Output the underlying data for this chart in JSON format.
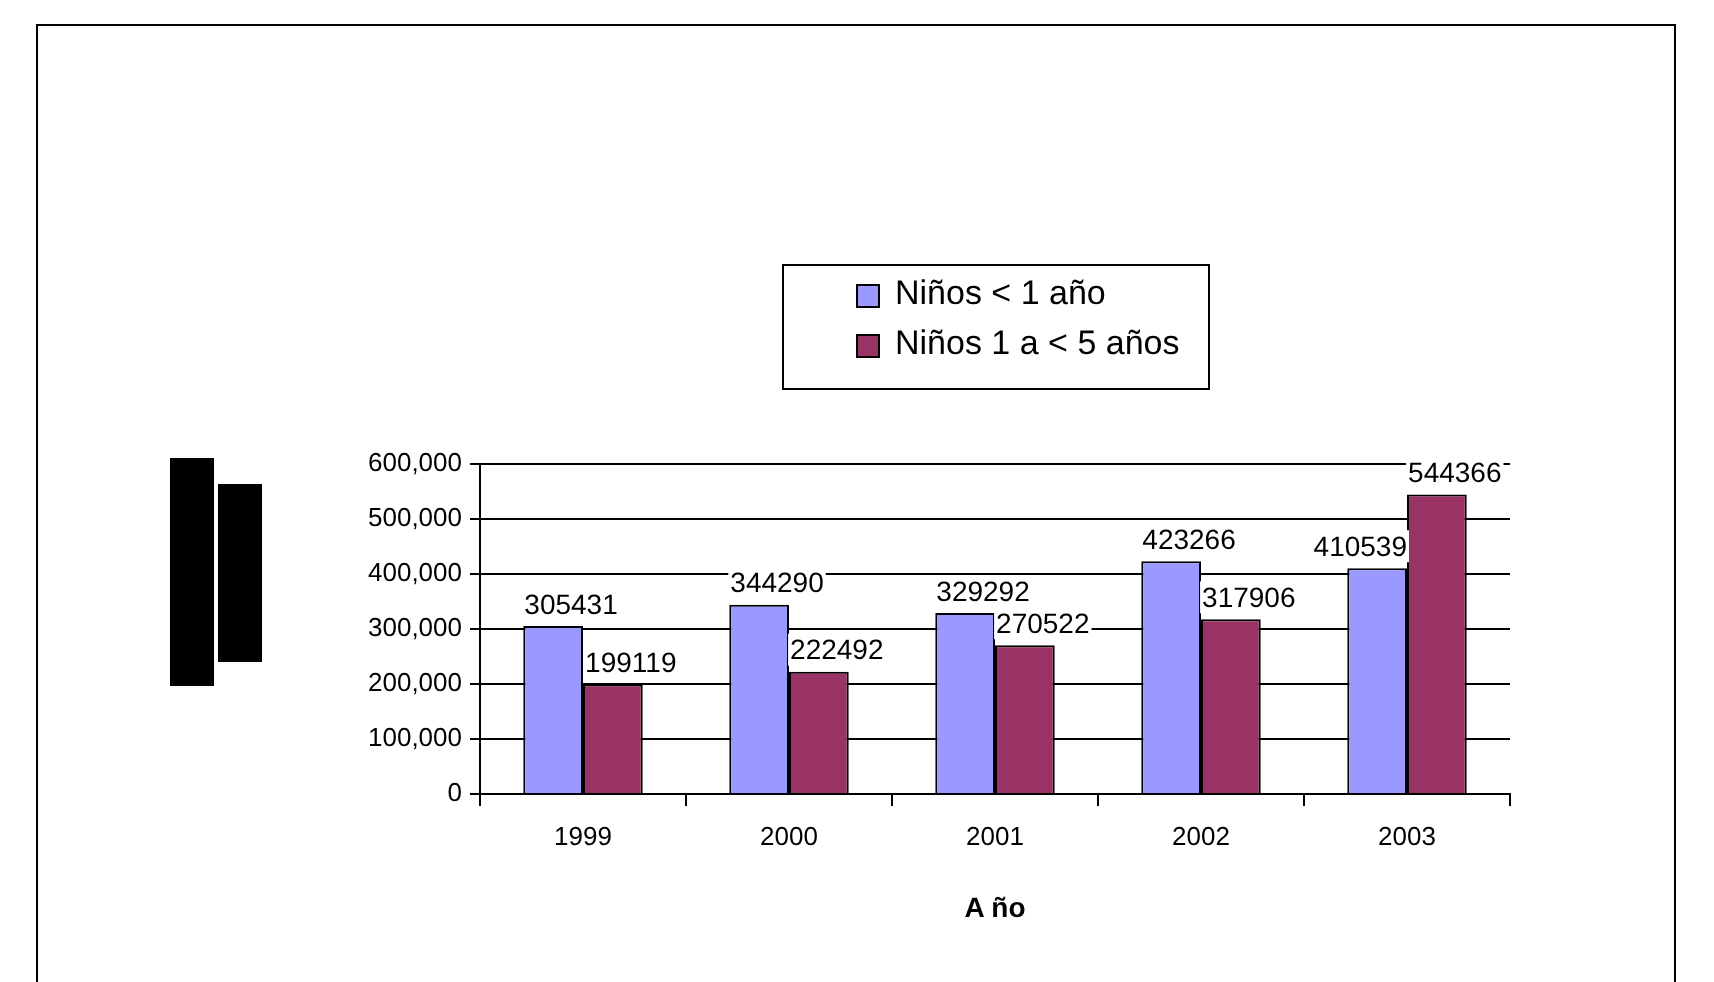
{
  "chart_data": {
    "type": "bar",
    "xlabel": "A ño",
    "categories": [
      "1999",
      "2000",
      "2001",
      "2002",
      "2003"
    ],
    "series": [
      {
        "name": "Niños < 1 año",
        "color": "#9999ff",
        "values": [
          305431,
          344290,
          329292,
          423266,
          410539
        ]
      },
      {
        "name": "Niños 1 a < 5 años",
        "color": "#993366",
        "values": [
          199119,
          222492,
          270522,
          317906,
          544366
        ]
      }
    ],
    "ylim": [
      0,
      600000
    ],
    "yticks": [
      0,
      {
        "value": 100000,
        "label": "100,000"
      },
      {
        "value": 200000,
        "label": "200,000"
      },
      {
        "value": 300000,
        "label": "300,000"
      },
      {
        "value": 400000,
        "label": "400,000"
      },
      {
        "value": 500000,
        "label": "500,000"
      },
      {
        "value": 600000,
        "label": "600,000"
      }
    ],
    "grid": "y",
    "legend": "top",
    "data_labels": true
  }
}
